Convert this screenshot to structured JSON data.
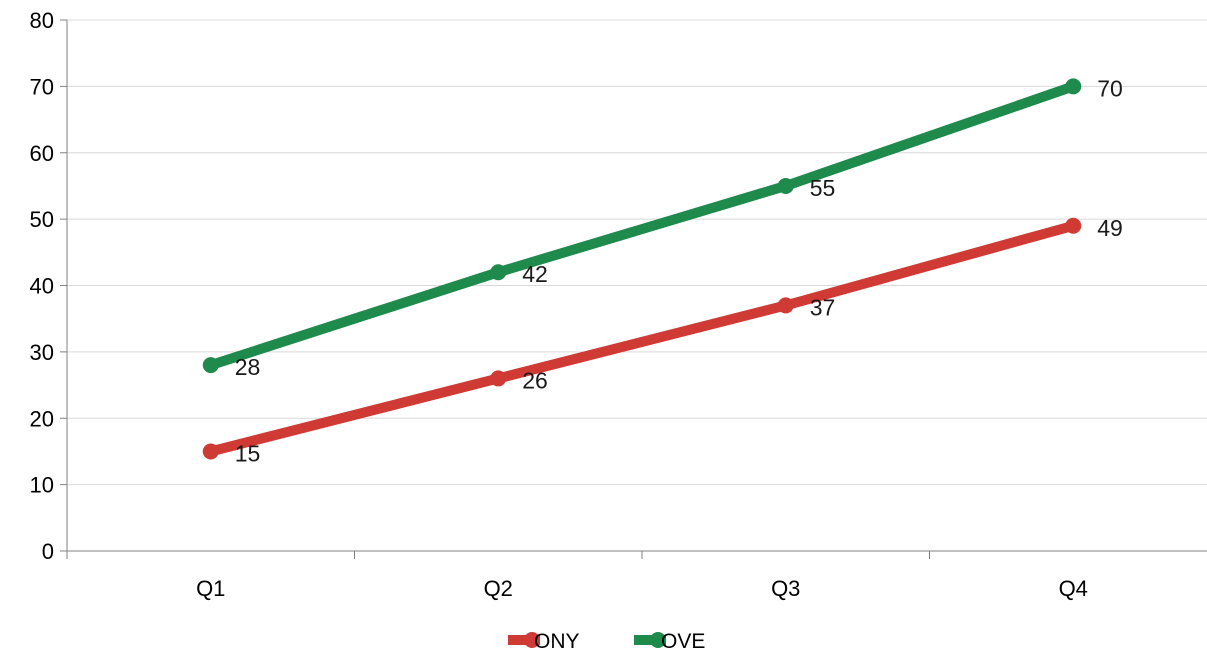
{
  "chart_data": {
    "type": "line",
    "categories": [
      "Q1",
      "Q2",
      "Q3",
      "Q4"
    ],
    "series": [
      {
        "name": "ONY",
        "values": [
          15,
          26,
          37,
          49
        ],
        "color": "#d03a35"
      },
      {
        "name": "OVE",
        "values": [
          28,
          42,
          55,
          70
        ],
        "color": "#1e8a4c"
      }
    ],
    "ylim": [
      0,
      80
    ],
    "yticks": [
      0,
      10,
      20,
      30,
      40,
      50,
      60,
      70,
      80
    ],
    "grid": true,
    "legend_position": "bottom-center",
    "data_labels": true
  }
}
